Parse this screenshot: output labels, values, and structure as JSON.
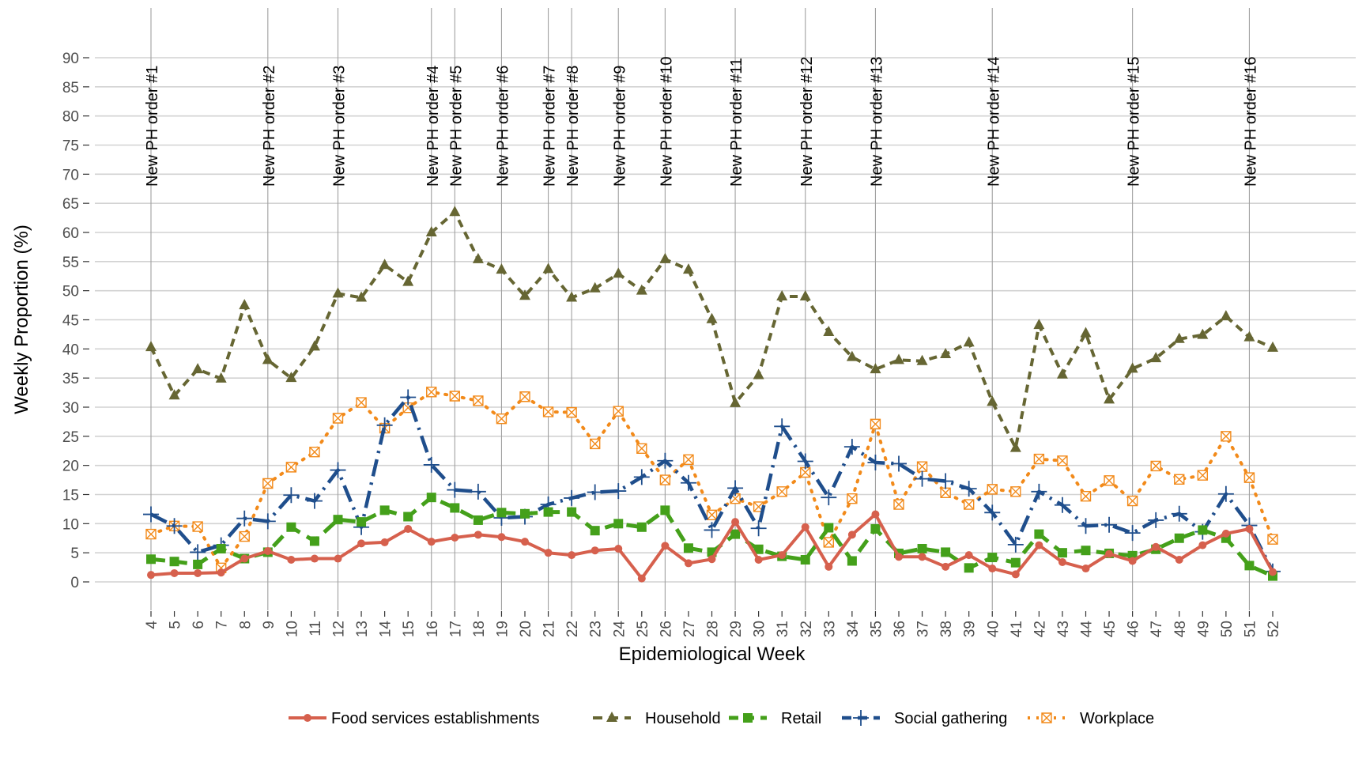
{
  "chart_data": {
    "type": "line",
    "title": "",
    "xlabel": "Epidemiological Week",
    "ylabel": "Weekly Proportion (%)",
    "ylim": [
      -5,
      95
    ],
    "yticks": [
      0,
      5,
      10,
      15,
      20,
      25,
      30,
      35,
      40,
      45,
      50,
      55,
      60,
      65,
      70,
      75,
      80,
      85,
      90
    ],
    "x": [
      4,
      5,
      6,
      7,
      8,
      9,
      10,
      11,
      12,
      13,
      14,
      15,
      16,
      17,
      18,
      19,
      20,
      21,
      22,
      23,
      24,
      25,
      26,
      27,
      28,
      29,
      30,
      31,
      32,
      33,
      34,
      35,
      36,
      37,
      38,
      39,
      40,
      41,
      42,
      43,
      44,
      45,
      46,
      47,
      48,
      49,
      50,
      51,
      52
    ],
    "grid": true,
    "legend_position": "bottom",
    "series": [
      {
        "name": "Food services establishments",
        "color": "#d6604d",
        "marker": "circle",
        "dash": "solid",
        "values": [
          1.2,
          1.5,
          1.5,
          1.6,
          4.0,
          5.3,
          3.8,
          4.0,
          4.0,
          6.6,
          6.8,
          9.1,
          6.9,
          7.6,
          8.1,
          7.7,
          6.9,
          5.0,
          4.6,
          5.4,
          5.7,
          0.6,
          6.2,
          3.2,
          3.9,
          10.3,
          3.8,
          4.6,
          9.4,
          2.6,
          8.1,
          11.6,
          4.3,
          4.3,
          2.6,
          4.6,
          2.3,
          1.3,
          6.3,
          3.4,
          2.3,
          4.8,
          3.6,
          6.0,
          3.8,
          6.3,
          8.3,
          9.1,
          1.7
        ]
      },
      {
        "name": "Household",
        "color": "#666633",
        "marker": "triangle",
        "dash": "dashed",
        "values": [
          40.3,
          32.0,
          36.5,
          34.9,
          47.5,
          38.1,
          35.0,
          40.4,
          49.5,
          48.8,
          54.4,
          51.5,
          60.0,
          63.5,
          55.4,
          53.6,
          49.1,
          53.7,
          48.8,
          50.4,
          52.9,
          50.0,
          55.4,
          53.6,
          45.1,
          30.7,
          35.5,
          49.0,
          49.0,
          42.9,
          38.6,
          36.5,
          38.1,
          37.9,
          39.1,
          41.1,
          30.9,
          23.0,
          44.1,
          35.6,
          42.7,
          31.3,
          36.6,
          38.4,
          41.7,
          42.4,
          45.6,
          42.0,
          40.2
        ]
      },
      {
        "name": "Retail",
        "color": "#44a01a",
        "marker": "square",
        "dash": "longdash",
        "values": [
          3.9,
          3.5,
          3.0,
          5.7,
          4.0,
          5.1,
          9.4,
          7.0,
          10.7,
          10.3,
          12.3,
          11.2,
          14.5,
          12.7,
          10.6,
          11.9,
          11.7,
          12.0,
          12.0,
          8.8,
          10.0,
          9.4,
          12.3,
          5.8,
          5.1,
          8.2,
          5.6,
          4.4,
          3.8,
          9.3,
          3.6,
          9.1,
          4.9,
          5.7,
          5.1,
          2.4,
          4.2,
          3.3,
          8.2,
          5.0,
          5.4,
          4.9,
          4.5,
          5.6,
          7.5,
          8.9,
          7.5,
          2.8,
          1.0
        ]
      },
      {
        "name": "Social gathering",
        "color": "#1f4e8c",
        "marker": "plus",
        "dash": "dashdot",
        "values": [
          11.6,
          9.6,
          5.1,
          6.3,
          10.9,
          10.4,
          14.9,
          13.9,
          19.2,
          9.4,
          26.9,
          31.7,
          20.1,
          15.8,
          15.5,
          11.0,
          11.2,
          13.3,
          14.4,
          15.4,
          15.6,
          18.0,
          20.8,
          17.0,
          8.9,
          16.1,
          9.2,
          26.7,
          20.7,
          14.5,
          23.2,
          20.5,
          20.3,
          17.7,
          17.3,
          16.0,
          11.9,
          6.4,
          15.5,
          13.2,
          9.6,
          9.8,
          8.4,
          10.6,
          11.7,
          8.6,
          15.1,
          9.7,
          1.8
        ]
      },
      {
        "name": "Workplace",
        "color": "#f28a1a",
        "marker": "boxx",
        "dash": "dotted",
        "values": [
          8.2,
          9.6,
          9.5,
          2.4,
          7.8,
          16.9,
          19.7,
          22.3,
          28.1,
          30.8,
          26.4,
          29.9,
          32.6,
          31.9,
          31.1,
          28.0,
          31.8,
          29.2,
          29.1,
          23.7,
          29.3,
          22.9,
          17.5,
          21.0,
          11.5,
          14.3,
          12.9,
          15.5,
          18.8,
          6.8,
          14.3,
          27.1,
          13.3,
          19.8,
          15.3,
          13.3,
          15.9,
          15.5,
          21.1,
          20.8,
          14.7,
          17.4,
          13.9,
          19.9,
          17.6,
          18.3,
          25.0,
          17.9,
          7.3
        ]
      }
    ],
    "annotations": [
      {
        "week": 4,
        "label": "New PH order #1"
      },
      {
        "week": 9,
        "label": "New PH order #2"
      },
      {
        "week": 12,
        "label": "New PH order #3"
      },
      {
        "week": 16,
        "label": "New PH order #4"
      },
      {
        "week": 17,
        "label": "New PH order #5"
      },
      {
        "week": 19,
        "label": "New PH order #6"
      },
      {
        "week": 21,
        "label": "New PH order #7"
      },
      {
        "week": 22,
        "label": "New PH order #8"
      },
      {
        "week": 24,
        "label": "New PH order #9"
      },
      {
        "week": 26,
        "label": "New PH order #10"
      },
      {
        "week": 29,
        "label": "New PH order #11"
      },
      {
        "week": 32,
        "label": "New PH order #12"
      },
      {
        "week": 35,
        "label": "New PH order #13"
      },
      {
        "week": 40,
        "label": "New PH order #14"
      },
      {
        "week": 46,
        "label": "New PH order #15"
      },
      {
        "week": 51,
        "label": "New PH order #16"
      }
    ]
  }
}
